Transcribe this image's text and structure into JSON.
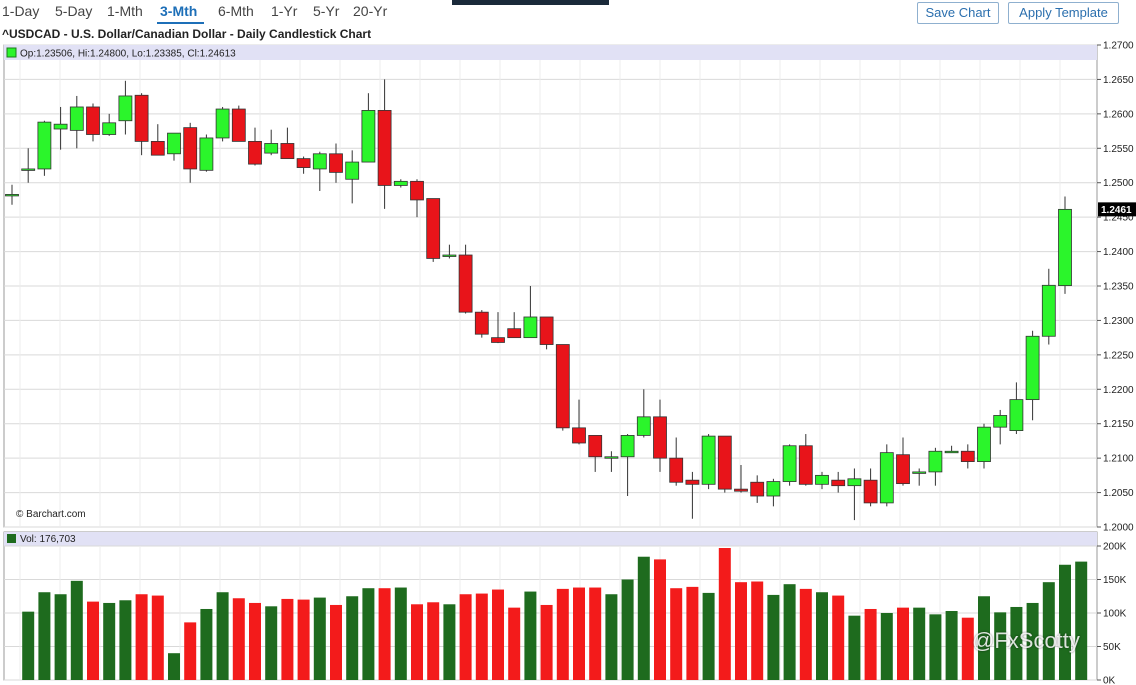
{
  "nav": {
    "ranges": [
      "1-Day",
      "5-Day",
      "1-Mth",
      "3-Mth",
      "6-Mth",
      "1-Yr",
      "5-Yr",
      "20-Yr"
    ],
    "active_range": "3-Mth",
    "save_chart": "Save Chart",
    "apply_template": "Apply Template"
  },
  "colors": {
    "up": "#2bf52b",
    "down": "#e8141a",
    "vol_up": "#1e6b1e",
    "vol_down": "#f31b1b",
    "panel_header": "#e1e1f5",
    "grid": "#d9d9d9",
    "price_tag": "#000000"
  },
  "chart_data": {
    "type": "candlestick",
    "title": "^USDCAD - U.S. Dollar/Canadian Dollar - Daily Candlestick Chart",
    "legend": "Op:1.23506, Hi:1.24800, Lo:1.23385, Cl:1.24613",
    "attribution": "© Barchart.com",
    "last_price_label": "1.2461",
    "ylim": [
      1.2,
      1.27
    ],
    "yticks": [
      "1.2000",
      "1.2050",
      "1.2100",
      "1.2150",
      "1.2200",
      "1.2250",
      "1.2300",
      "1.2350",
      "1.2400",
      "1.2450",
      "1.2500",
      "1.2550",
      "1.2600",
      "1.2650",
      "1.2700"
    ],
    "candles": [
      {
        "o": 1.2483,
        "h": 1.2497,
        "l": 1.2468,
        "c": 1.2483
      },
      {
        "o": 1.252,
        "h": 1.255,
        "l": 1.25,
        "c": 1.252
      },
      {
        "o": 1.252,
        "h": 1.259,
        "l": 1.251,
        "c": 1.2588
      },
      {
        "o": 1.2578,
        "h": 1.261,
        "l": 1.2548,
        "c": 1.2585
      },
      {
        "o": 1.2576,
        "h": 1.2626,
        "l": 1.255,
        "c": 1.261
      },
      {
        "o": 1.261,
        "h": 1.2615,
        "l": 1.256,
        "c": 1.257
      },
      {
        "o": 1.257,
        "h": 1.26,
        "l": 1.2568,
        "c": 1.2587
      },
      {
        "o": 1.259,
        "h": 1.2648,
        "l": 1.257,
        "c": 1.2626
      },
      {
        "o": 1.2627,
        "h": 1.263,
        "l": 1.254,
        "c": 1.256
      },
      {
        "o": 1.256,
        "h": 1.2585,
        "l": 1.254,
        "c": 1.254
      },
      {
        "o": 1.2542,
        "h": 1.2572,
        "l": 1.2532,
        "c": 1.2572
      },
      {
        "o": 1.258,
        "h": 1.2587,
        "l": 1.25,
        "c": 1.252
      },
      {
        "o": 1.2518,
        "h": 1.257,
        "l": 1.2516,
        "c": 1.2565
      },
      {
        "o": 1.2565,
        "h": 1.261,
        "l": 1.256,
        "c": 1.2607
      },
      {
        "o": 1.2607,
        "h": 1.2612,
        "l": 1.256,
        "c": 1.256
      },
      {
        "o": 1.256,
        "h": 1.258,
        "l": 1.2525,
        "c": 1.2527
      },
      {
        "o": 1.2543,
        "h": 1.2577,
        "l": 1.254,
        "c": 1.2557
      },
      {
        "o": 1.2557,
        "h": 1.258,
        "l": 1.2535,
        "c": 1.2535
      },
      {
        "o": 1.2535,
        "h": 1.2538,
        "l": 1.2513,
        "c": 1.2522
      },
      {
        "o": 1.252,
        "h": 1.2545,
        "l": 1.2488,
        "c": 1.2542
      },
      {
        "o": 1.2542,
        "h": 1.2557,
        "l": 1.25,
        "c": 1.2515
      },
      {
        "o": 1.2505,
        "h": 1.2547,
        "l": 1.247,
        "c": 1.253
      },
      {
        "o": 1.253,
        "h": 1.263,
        "l": 1.253,
        "c": 1.2605
      },
      {
        "o": 1.2605,
        "h": 1.265,
        "l": 1.2462,
        "c": 1.2496
      },
      {
        "o": 1.2496,
        "h": 1.2505,
        "l": 1.2493,
        "c": 1.2502
      },
      {
        "o": 1.2502,
        "h": 1.2505,
        "l": 1.245,
        "c": 1.2475
      },
      {
        "o": 1.2477,
        "h": 1.2477,
        "l": 1.2385,
        "c": 1.239
      },
      {
        "o": 1.2393,
        "h": 1.241,
        "l": 1.239,
        "c": 1.2395
      },
      {
        "o": 1.2395,
        "h": 1.241,
        "l": 1.231,
        "c": 1.2312
      },
      {
        "o": 1.2312,
        "h": 1.2315,
        "l": 1.2275,
        "c": 1.228
      },
      {
        "o": 1.2275,
        "h": 1.2312,
        "l": 1.2267,
        "c": 1.2268
      },
      {
        "o": 1.2288,
        "h": 1.2312,
        "l": 1.2275,
        "c": 1.2275
      },
      {
        "o": 1.2275,
        "h": 1.235,
        "l": 1.2275,
        "c": 1.2305
      },
      {
        "o": 1.2305,
        "h": 1.2305,
        "l": 1.2258,
        "c": 1.2265
      },
      {
        "o": 1.2265,
        "h": 1.2265,
        "l": 1.214,
        "c": 1.2144
      },
      {
        "o": 1.2144,
        "h": 1.2185,
        "l": 1.212,
        "c": 1.2122
      },
      {
        "o": 1.2133,
        "h": 1.2133,
        "l": 1.208,
        "c": 1.2102
      },
      {
        "o": 1.2102,
        "h": 1.211,
        "l": 1.208,
        "c": 1.2102
      },
      {
        "o": 1.2102,
        "h": 1.2135,
        "l": 1.2045,
        "c": 1.2133
      },
      {
        "o": 1.2133,
        "h": 1.22,
        "l": 1.213,
        "c": 1.216
      },
      {
        "o": 1.216,
        "h": 1.2185,
        "l": 1.208,
        "c": 1.21
      },
      {
        "o": 1.21,
        "h": 1.213,
        "l": 1.206,
        "c": 1.2065
      },
      {
        "o": 1.2068,
        "h": 1.208,
        "l": 1.2012,
        "c": 1.2062
      },
      {
        "o": 1.2062,
        "h": 1.2135,
        "l": 1.2055,
        "c": 1.2132
      },
      {
        "o": 1.2132,
        "h": 1.2132,
        "l": 1.205,
        "c": 1.2055
      },
      {
        "o": 1.2055,
        "h": 1.209,
        "l": 1.205,
        "c": 1.2052
      },
      {
        "o": 1.2065,
        "h": 1.2075,
        "l": 1.2035,
        "c": 1.2045
      },
      {
        "o": 1.2045,
        "h": 1.207,
        "l": 1.203,
        "c": 1.2066
      },
      {
        "o": 1.2066,
        "h": 1.212,
        "l": 1.206,
        "c": 1.2118
      },
      {
        "o": 1.2118,
        "h": 1.2135,
        "l": 1.206,
        "c": 1.2062
      },
      {
        "o": 1.2062,
        "h": 1.208,
        "l": 1.2055,
        "c": 1.2075
      },
      {
        "o": 1.2068,
        "h": 1.208,
        "l": 1.205,
        "c": 1.206
      },
      {
        "o": 1.206,
        "h": 1.2085,
        "l": 1.201,
        "c": 1.207
      },
      {
        "o": 1.2068,
        "h": 1.2085,
        "l": 1.203,
        "c": 1.2035
      },
      {
        "o": 1.2035,
        "h": 1.212,
        "l": 1.203,
        "c": 1.2108
      },
      {
        "o": 1.2105,
        "h": 1.213,
        "l": 1.206,
        "c": 1.2063
      },
      {
        "o": 1.2078,
        "h": 1.2085,
        "l": 1.206,
        "c": 1.208
      },
      {
        "o": 1.208,
        "h": 1.2115,
        "l": 1.206,
        "c": 1.211
      },
      {
        "o": 1.211,
        "h": 1.2118,
        "l": 1.2108,
        "c": 1.211
      },
      {
        "o": 1.211,
        "h": 1.212,
        "l": 1.2085,
        "c": 1.2095
      },
      {
        "o": 1.2095,
        "h": 1.215,
        "l": 1.2085,
        "c": 1.2145
      },
      {
        "o": 1.2145,
        "h": 1.217,
        "l": 1.212,
        "c": 1.2162
      },
      {
        "o": 1.214,
        "h": 1.221,
        "l": 1.2135,
        "c": 1.2185
      },
      {
        "o": 1.2185,
        "h": 1.2285,
        "l": 1.2155,
        "c": 1.2277
      },
      {
        "o": 1.2277,
        "h": 1.2375,
        "l": 1.2265,
        "c": 1.2351
      },
      {
        "o": 1.23506,
        "h": 1.248,
        "l": 1.23385,
        "c": 1.24613
      }
    ],
    "volume": {
      "label": "Vol: 176,703",
      "ylim": [
        0,
        200000
      ],
      "yticks": [
        "0K",
        "50K",
        "100K",
        "150K",
        "200K"
      ],
      "values": [
        102000,
        131000,
        128000,
        148000,
        117000,
        115000,
        119000,
        128000,
        126000,
        40000,
        86000,
        106000,
        131000,
        122000,
        115000,
        110000,
        121000,
        120000,
        123000,
        112000,
        125000,
        137000,
        137000,
        138000,
        113000,
        116000,
        113000,
        128000,
        129000,
        135000,
        108000,
        132000,
        112000,
        136000,
        138000,
        138000,
        128000,
        150000,
        184000,
        180000,
        137000,
        139000,
        130000,
        197000,
        146000,
        147000,
        127000,
        143000,
        136000,
        131000,
        126000,
        96000,
        106000,
        100000,
        108000,
        108000,
        98000,
        103000,
        93000,
        125000,
        101000,
        109000,
        115000,
        146000,
        172000,
        176703
      ]
    }
  },
  "watermark": "@FxScotty"
}
